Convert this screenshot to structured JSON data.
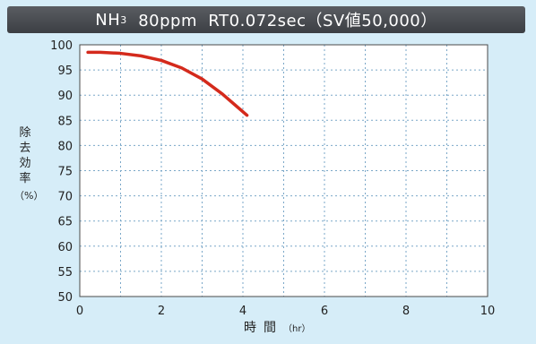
{
  "chart_data": {
    "type": "line",
    "title_main": "NH",
    "title_sub": "3",
    "title_rest": "  80ppm  RT0.072sec（SV値50,000）",
    "ylabel": "除去効率",
    "yunit": "（%）",
    "xlabel": "時間",
    "xunit": "（hr）",
    "xlim": [
      0,
      10
    ],
    "ylim": [
      50,
      100
    ],
    "xticks": [
      0,
      2,
      4,
      6,
      8,
      10
    ],
    "yticks": [
      50,
      55,
      60,
      65,
      70,
      75,
      80,
      85,
      90,
      95,
      100
    ],
    "grid": true,
    "series_color": "#d42a1c",
    "series": [
      {
        "x": [
          0.2,
          0.5,
          1.0,
          1.5,
          2.0,
          2.5,
          3.0,
          3.5,
          3.8,
          4.1
        ],
        "y": [
          98.5,
          98.5,
          98.3,
          97.8,
          96.9,
          95.4,
          93.2,
          90.2,
          88.1,
          86.0
        ]
      }
    ]
  }
}
